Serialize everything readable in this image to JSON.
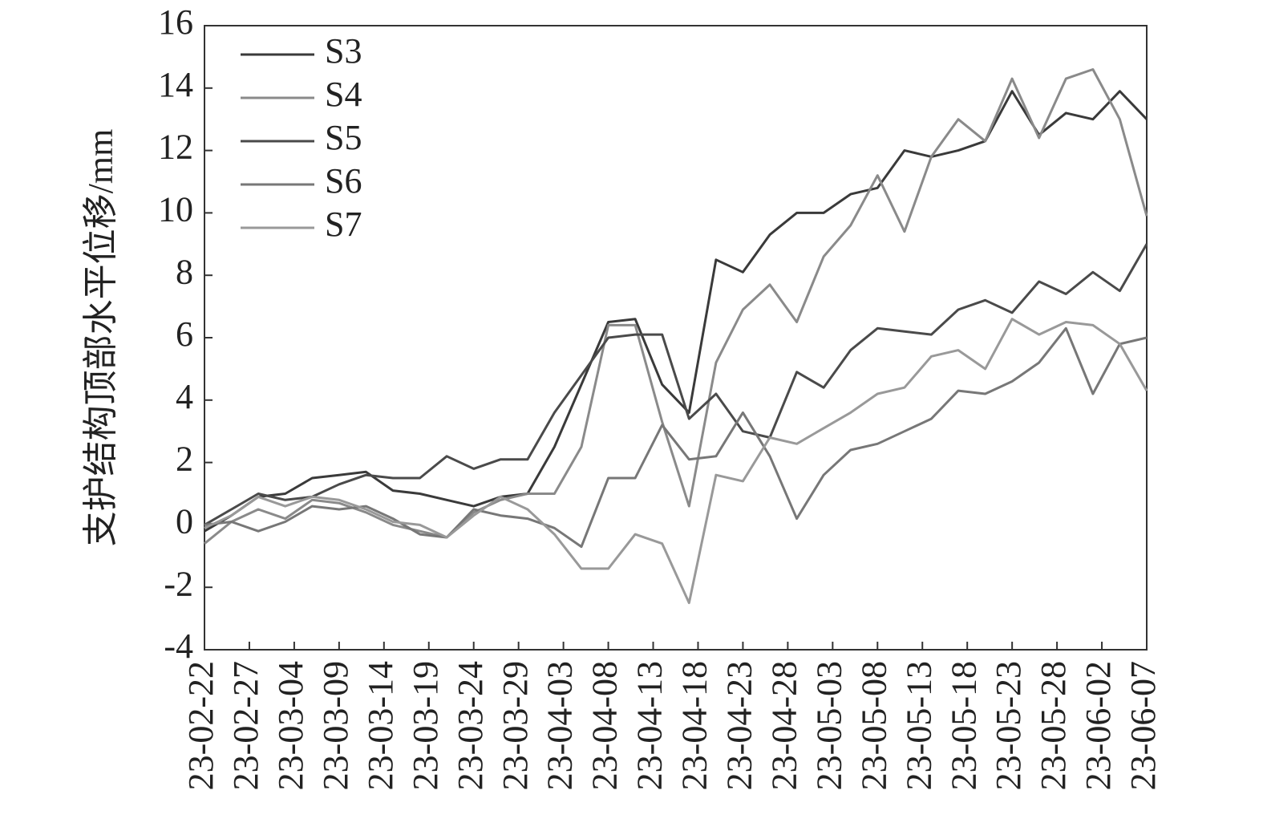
{
  "chart_data": {
    "type": "line",
    "y_label": "支护结构顶部水平位移/mm",
    "x": [
      "23-02-22",
      "23-02-25",
      "23-02-28",
      "23-03-03",
      "23-03-06",
      "23-03-09",
      "23-03-12",
      "23-03-15",
      "23-03-18",
      "23-03-21",
      "23-03-24",
      "23-03-27",
      "23-03-30",
      "23-04-02",
      "23-04-05",
      "23-04-08",
      "23-04-11",
      "23-04-14",
      "23-04-17",
      "23-04-20",
      "23-04-23",
      "23-04-26",
      "23-04-29",
      "23-05-02",
      "23-05-05",
      "23-05-08",
      "23-05-11",
      "23-05-14",
      "23-05-17",
      "23-05-20",
      "23-05-23",
      "23-05-26",
      "23-05-29",
      "23-06-01",
      "23-06-04",
      "23-06-07"
    ],
    "series": [
      {
        "name": "S3",
        "color": "#3a3a3a",
        "values": [
          -0.2,
          0.3,
          0.9,
          1.0,
          1.5,
          1.6,
          1.7,
          1.1,
          1.0,
          0.8,
          0.6,
          0.9,
          1.0,
          2.5,
          4.5,
          6.5,
          6.6,
          4.5,
          3.6,
          8.5,
          8.1,
          9.3,
          10.0,
          10.0,
          10.6,
          10.8,
          12.0,
          11.8,
          12.0,
          12.3,
          13.9,
          12.5,
          13.2,
          13.0,
          13.9,
          13.0
        ]
      },
      {
        "name": "S4",
        "color": "#8a8a8a",
        "values": [
          -0.6,
          0.1,
          0.5,
          0.2,
          0.8,
          0.7,
          0.4,
          0.0,
          -0.2,
          -0.4,
          0.4,
          0.8,
          1.0,
          1.0,
          2.5,
          6.4,
          6.4,
          3.3,
          0.6,
          5.2,
          6.9,
          7.7,
          6.5,
          8.6,
          9.6,
          11.2,
          9.4,
          11.8,
          13.0,
          12.3,
          14.3,
          12.4,
          14.3,
          14.6,
          13.0,
          9.9
        ]
      },
      {
        "name": "S5",
        "color": "#4a4a4a",
        "values": [
          0.0,
          0.5,
          1.0,
          0.8,
          0.9,
          1.3,
          1.6,
          1.5,
          1.5,
          2.2,
          1.8,
          2.1,
          2.1,
          3.6,
          4.8,
          6.0,
          6.1,
          6.1,
          3.4,
          4.2,
          3.0,
          2.8,
          4.9,
          4.4,
          5.6,
          6.3,
          6.2,
          6.1,
          6.9,
          7.2,
          6.8,
          7.8,
          7.4,
          8.1,
          7.5,
          9.0
        ]
      },
      {
        "name": "S6",
        "color": "#777777",
        "values": [
          0.0,
          0.1,
          -0.2,
          0.1,
          0.6,
          0.5,
          0.6,
          0.2,
          -0.3,
          -0.4,
          0.5,
          0.3,
          0.2,
          -0.1,
          -0.7,
          1.5,
          1.5,
          3.2,
          2.1,
          2.2,
          3.6,
          2.2,
          0.2,
          1.6,
          2.4,
          2.6,
          3.0,
          3.4,
          4.3,
          4.2,
          4.6,
          5.2,
          6.3,
          4.2,
          5.8,
          6.0
        ]
      },
      {
        "name": "S7",
        "color": "#999999",
        "values": [
          -0.1,
          0.3,
          0.9,
          0.6,
          0.9,
          0.8,
          0.5,
          0.1,
          0.0,
          -0.4,
          0.3,
          0.9,
          0.5,
          -0.3,
          -1.4,
          -1.4,
          -0.3,
          -0.6,
          -2.5,
          1.6,
          1.4,
          2.8,
          2.6,
          3.1,
          3.6,
          4.2,
          4.4,
          5.4,
          5.6,
          5.0,
          6.6,
          6.1,
          6.5,
          6.4,
          5.8,
          4.3
        ]
      }
    ],
    "xlim": [
      "23-02-22",
      "23-06-07"
    ],
    "xticks": [
      "23-02-22",
      "23-02-27",
      "23-03-04",
      "23-03-09",
      "23-03-14",
      "23-03-19",
      "23-03-24",
      "23-03-29",
      "23-04-03",
      "23-04-08",
      "23-04-13",
      "23-04-18",
      "23-04-23",
      "23-04-28",
      "23-05-03",
      "23-05-08",
      "23-05-13",
      "23-05-18",
      "23-05-23",
      "23-05-28",
      "23-06-02",
      "23-06-07"
    ],
    "ylim": [
      -4,
      16
    ],
    "yticks": [
      -4,
      -2,
      0,
      2,
      4,
      6,
      8,
      10,
      12,
      14,
      16
    ],
    "legend": "upper-left"
  }
}
